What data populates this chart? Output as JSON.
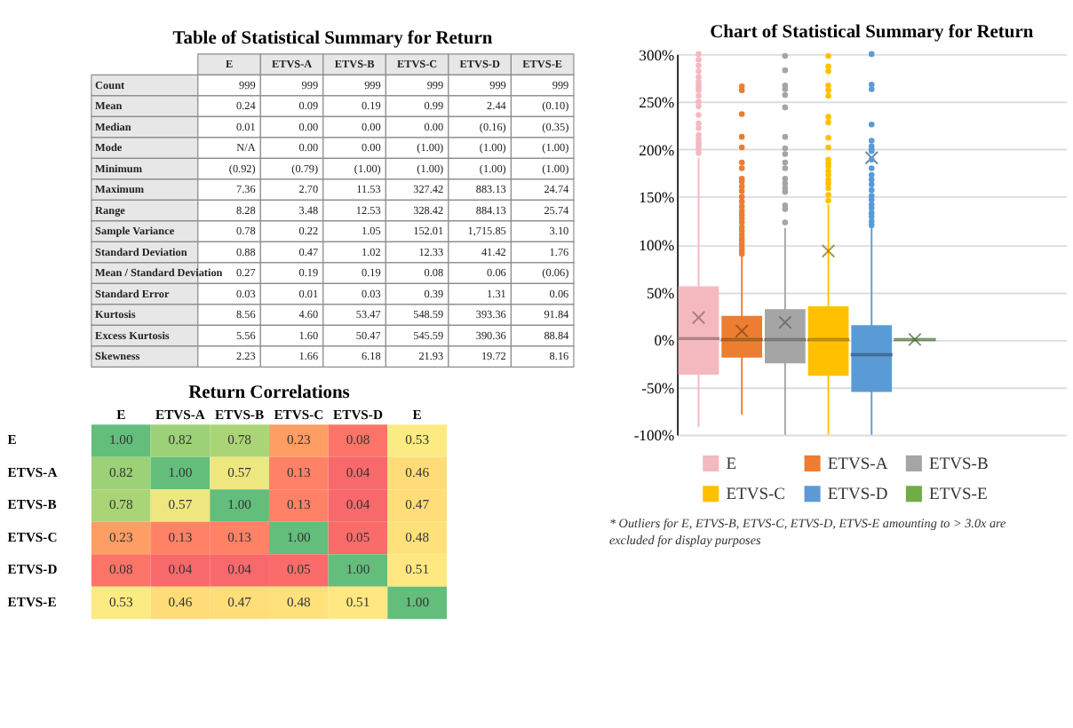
{
  "chart_data": [
    {
      "type": "other",
      "title": "Table of Statistical Summary for Return",
      "categories": [
        "E",
        "ETVS-A",
        "ETVS-B",
        "ETVS-C",
        "ETVS-D",
        "ETVS-E"
      ],
      "y_categories": [
        "Count",
        "Mean",
        "Median",
        "Mode",
        "Minimum",
        "Maximum",
        "Range",
        "Sample Variance",
        "Standard Deviation",
        "Mean / Standard Deviation",
        "Standard Error",
        "Kurtosis",
        "Excess Kurtosis",
        "Skewness"
      ],
      "cell_labels": [
        [
          "999",
          "999",
          "999",
          "999",
          "999",
          "999"
        ],
        [
          "0.24",
          "0.09",
          "0.19",
          "0.99",
          "2.44",
          "(0.10)"
        ],
        [
          "0.01",
          "0.00",
          "0.00",
          "0.00",
          "(0.16)",
          "(0.35)"
        ],
        [
          "N/A",
          "0.00",
          "0.00",
          "(1.00)",
          "(1.00)",
          "(1.00)"
        ],
        [
          "(0.92)",
          "(0.79)",
          "(1.00)",
          "(1.00)",
          "(1.00)",
          "(1.00)"
        ],
        [
          "7.36",
          "2.70",
          "11.53",
          "327.42",
          "883.13",
          "24.74"
        ],
        [
          "8.28",
          "3.48",
          "12.53",
          "328.42",
          "884.13",
          "25.74"
        ],
        [
          "0.78",
          "0.22",
          "1.05",
          "152.01",
          "1,715.85",
          "3.10"
        ],
        [
          "0.88",
          "0.47",
          "1.02",
          "12.33",
          "41.42",
          "1.76"
        ],
        [
          "0.27",
          "0.19",
          "0.19",
          "0.08",
          "0.06",
          "(0.06)"
        ],
        [
          "0.03",
          "0.01",
          "0.03",
          "0.39",
          "1.31",
          "0.06"
        ],
        [
          "8.56",
          "4.60",
          "53.47",
          "548.59",
          "393.36",
          "91.84"
        ],
        [
          "5.56",
          "1.60",
          "50.47",
          "545.59",
          "390.36",
          "88.84"
        ],
        [
          "2.23",
          "1.66",
          "6.18",
          "21.93",
          "19.72",
          "8.16"
        ]
      ]
    },
    {
      "type": "box",
      "title": "Chart of Statistical Summary for Return",
      "categories": [
        null
      ],
      "ylim": [
        -100,
        300
      ],
      "yticks": [
        {
          "value": -100,
          "label": "-100%"
        },
        {
          "value": -50,
          "label": "-50%"
        },
        {
          "value": 0,
          "label": "0%"
        },
        {
          "value": 50,
          "label": "50%"
        },
        {
          "value": 100,
          "label": "100%"
        },
        {
          "value": 150,
          "label": "150%"
        },
        {
          "value": 200,
          "label": "200%"
        },
        {
          "value": 250,
          "label": "250%"
        },
        {
          "value": 300,
          "label": "300%"
        }
      ],
      "grid": "y",
      "legend": "bottom",
      "annotations": [
        "* Outliers for E, ETVS-B, ETVS-C, ETVS-D, ETVS-E amounting to > 3.0x are excluded for display purposes"
      ],
      "series": [
        {
          "name": "E",
          "color": "#f4b9bf",
          "boxes": [
            {
              "low": -92,
              "q1": -37,
              "median": 1,
              "q3": 56,
              "high": 191,
              "mean": 23,
              "outliers": [
                196,
                200,
                204,
                207,
                211,
                215,
                222,
                227,
                236,
                245,
                250,
                256,
                262,
                265,
                268,
                271,
                276,
                282,
                288,
                294,
                300
              ]
            }
          ]
        },
        {
          "name": "ETVS-A",
          "color": "#ed7d31",
          "boxes": [
            {
              "low": -79,
              "q1": -19,
              "median": 0,
              "q3": 25,
              "high": 88,
              "mean": 9,
              "outliers": [
                90,
                93,
                96,
                100,
                103,
                106,
                110,
                114,
                118,
                123,
                127,
                131,
                135,
                140,
                145,
                150,
                156,
                161,
                166,
                169,
                180,
                186,
                202,
                213,
                237,
                262,
                266
              ]
            }
          ]
        },
        {
          "name": "ETVS-B",
          "color": "#a5a5a5",
          "boxes": [
            {
              "low": -100,
              "q1": -25,
              "median": 0,
              "q3": 32,
              "high": 117,
              "mean": 18,
              "outliers": [
                123,
                137,
                141,
                155,
                159,
                164,
                169,
                180,
                186,
                195,
                201,
                213,
                244,
                257,
                263,
                267,
                283,
                298
              ]
            }
          ]
        },
        {
          "name": "ETVS-C",
          "color": "#ffc000",
          "boxes": [
            {
              "low": -100,
              "q1": -38,
              "median": 0,
              "q3": 35,
              "high": 142,
              "mean": 93,
              "outliers": [
                146,
                152,
                159,
                164,
                168,
                173,
                177,
                182,
                185,
                189,
                202,
                212,
                228,
                234,
                256,
                262,
                267,
                282,
                287,
                298
              ]
            }
          ]
        },
        {
          "name": "ETVS-D",
          "color": "#5b9bd5",
          "boxes": [
            {
              "low": -100,
              "q1": -55,
              "median": -16,
              "q3": 15,
              "high": 117,
              "mean": 191,
              "outliers": [
                120,
                124,
                129,
                133,
                138,
                142,
                147,
                151,
                157,
                163,
                168,
                173,
                180,
                189,
                198,
                200,
                203,
                209,
                226,
                263,
                268,
                300
              ]
            }
          ]
        },
        {
          "name": "ETVS-E",
          "color": "#70ad47",
          "boxes": [
            {
              "low": 0,
              "q1": 0,
              "median": 0,
              "q3": 0,
              "high": 0,
              "mean": 0
            }
          ]
        }
      ]
    },
    {
      "type": "heatmap",
      "title": "Return Correlations",
      "categories": [
        "E",
        "ETVS-A",
        "ETVS-B",
        "ETVS-C",
        "ETVS-D",
        "E"
      ],
      "y_categories": [
        "E",
        "ETVS-A",
        "ETVS-B",
        "ETVS-C",
        "ETVS-D",
        "ETVS-E"
      ],
      "cell_labels": [
        [
          "1.00",
          "0.82",
          "0.78",
          "0.23",
          "0.08",
          "0.53"
        ],
        [
          "0.82",
          "1.00",
          "0.57",
          "0.13",
          "0.04",
          "0.46"
        ],
        [
          "0.78",
          "0.57",
          "1.00",
          "0.13",
          "0.04",
          "0.47"
        ],
        [
          "0.23",
          "0.13",
          "0.13",
          "1.00",
          "0.05",
          "0.48"
        ],
        [
          "0.08",
          "0.04",
          "0.04",
          "0.05",
          "1.00",
          "0.51"
        ],
        [
          "0.53",
          "0.46",
          "0.47",
          "0.48",
          "0.51",
          "1.00"
        ]
      ],
      "cells": [
        [
          1.0,
          0.82,
          0.78,
          0.23,
          0.08,
          0.53
        ],
        [
          0.82,
          1.0,
          0.57,
          0.13,
          0.04,
          0.46
        ],
        [
          0.78,
          0.57,
          1.0,
          0.13,
          0.04,
          0.47
        ],
        [
          0.23,
          0.13,
          0.13,
          1.0,
          0.05,
          0.48
        ],
        [
          0.08,
          0.04,
          0.04,
          0.05,
          1.0,
          0.51
        ],
        [
          0.53,
          0.46,
          0.47,
          0.48,
          0.51,
          1.0
        ]
      ]
    }
  ]
}
